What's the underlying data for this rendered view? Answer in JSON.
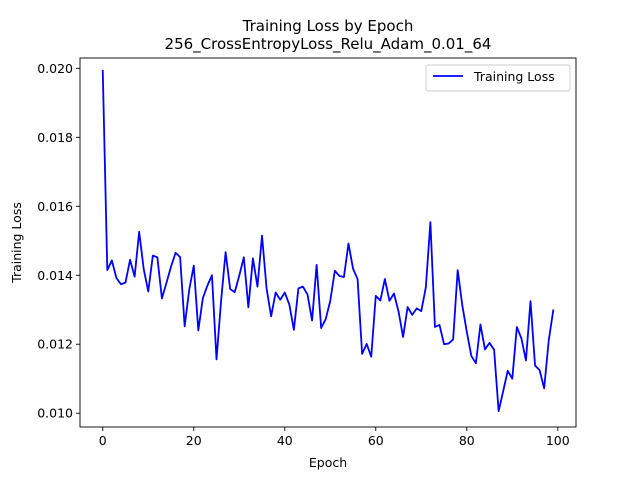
{
  "chart_data": {
    "type": "line",
    "title": "Training Loss by Epoch",
    "subtitle": "256_CrossEntropyLoss_Relu_Adam_0.01_64",
    "xlabel": "Epoch",
    "ylabel": "Training Loss",
    "xlim": [
      -5,
      104
    ],
    "ylim": [
      0.0096,
      0.0203
    ],
    "xticks": [
      0,
      20,
      40,
      60,
      80,
      100
    ],
    "xtick_labels": [
      "0",
      "20",
      "40",
      "60",
      "80",
      "100"
    ],
    "yticks": [
      0.01,
      0.012,
      0.014,
      0.016,
      0.018,
      0.02
    ],
    "ytick_labels": [
      "0.010",
      "0.012",
      "0.014",
      "0.016",
      "0.018",
      "0.020"
    ],
    "grid": false,
    "legend_position": "top-right",
    "series": [
      {
        "name": "Training Loss",
        "color": "#0000ff",
        "x": [
          0,
          1,
          2,
          3,
          4,
          5,
          6,
          7,
          8,
          9,
          10,
          11,
          12,
          13,
          14,
          15,
          16,
          17,
          18,
          19,
          20,
          21,
          22,
          23,
          24,
          25,
          26,
          27,
          28,
          29,
          30,
          31,
          32,
          33,
          34,
          35,
          36,
          37,
          38,
          39,
          40,
          41,
          42,
          43,
          44,
          45,
          46,
          47,
          48,
          49,
          50,
          51,
          52,
          53,
          54,
          55,
          56,
          57,
          58,
          59,
          60,
          61,
          62,
          63,
          64,
          65,
          66,
          67,
          68,
          69,
          70,
          71,
          72,
          73,
          74,
          75,
          76,
          77,
          78,
          79,
          80,
          81,
          82,
          83,
          84,
          85,
          86,
          87,
          88,
          89,
          90,
          91,
          92,
          93,
          94,
          95,
          96,
          97,
          98,
          99
        ],
        "values": [
          0.01993,
          0.01415,
          0.01443,
          0.01392,
          0.01374,
          0.01379,
          0.01445,
          0.01396,
          0.01526,
          0.01418,
          0.01353,
          0.01457,
          0.01452,
          0.01333,
          0.01378,
          0.01425,
          0.01465,
          0.01453,
          0.01252,
          0.01358,
          0.01428,
          0.0124,
          0.01334,
          0.0137,
          0.014,
          0.01156,
          0.01325,
          0.01467,
          0.0136,
          0.01351,
          0.01399,
          0.01452,
          0.01307,
          0.01449,
          0.01367,
          0.01515,
          0.01362,
          0.01281,
          0.0135,
          0.01329,
          0.0135,
          0.01315,
          0.01242,
          0.01362,
          0.01367,
          0.01344,
          0.01269,
          0.0143,
          0.01247,
          0.01273,
          0.01326,
          0.01413,
          0.01398,
          0.01395,
          0.01492,
          0.01419,
          0.01389,
          0.01172,
          0.01201,
          0.01164,
          0.0134,
          0.01327,
          0.01389,
          0.01326,
          0.01347,
          0.01295,
          0.01221,
          0.01308,
          0.01285,
          0.01304,
          0.01296,
          0.01365,
          0.01554,
          0.0125,
          0.01256,
          0.012,
          0.01202,
          0.01214,
          0.01415,
          0.01314,
          0.01236,
          0.01166,
          0.01145,
          0.01257,
          0.01185,
          0.01204,
          0.01184,
          0.01006,
          0.01064,
          0.01123,
          0.011,
          0.0125,
          0.01217,
          0.01153,
          0.01325,
          0.01138,
          0.01125,
          0.01072,
          0.0121,
          0.01298
        ]
      }
    ]
  }
}
